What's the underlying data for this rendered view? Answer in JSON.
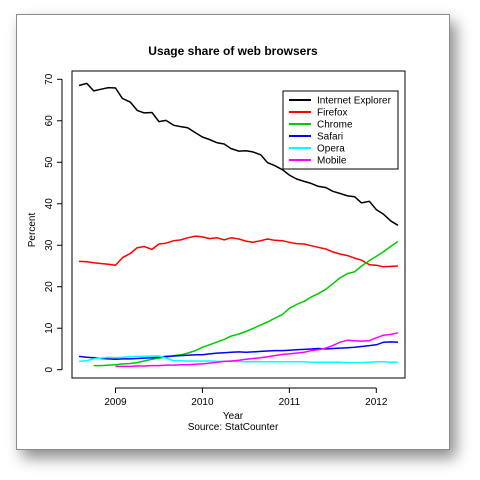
{
  "chart_data": {
    "type": "line",
    "title": "Usage share of web browsers",
    "xlabel": "Year",
    "ylabel": "Percent",
    "source": "Source: StatCounter",
    "xlim": [
      2008.5,
      2012.33
    ],
    "ylim": [
      -2,
      72
    ],
    "xticks": [
      2009,
      2010,
      2011,
      2012
    ],
    "yticks": [
      0,
      10,
      20,
      30,
      40,
      50,
      60,
      70
    ],
    "grid": false,
    "legend_position": "top-right",
    "series": [
      {
        "name": "Internet Explorer",
        "color": "#000000",
        "points": [
          [
            2008.58,
            68.5
          ],
          [
            2008.67,
            69.0
          ],
          [
            2008.75,
            67.2
          ],
          [
            2008.83,
            67.6
          ],
          [
            2008.92,
            68.0
          ],
          [
            2009.0,
            67.9
          ],
          [
            2009.08,
            65.4
          ],
          [
            2009.17,
            64.5
          ],
          [
            2009.25,
            62.5
          ],
          [
            2009.33,
            61.9
          ],
          [
            2009.42,
            62.0
          ],
          [
            2009.5,
            59.8
          ],
          [
            2009.58,
            60.1
          ],
          [
            2009.67,
            58.9
          ],
          [
            2009.75,
            58.6
          ],
          [
            2009.83,
            58.3
          ],
          [
            2009.92,
            57.1
          ],
          [
            2010.0,
            56.1
          ],
          [
            2010.08,
            55.5
          ],
          [
            2010.17,
            54.7
          ],
          [
            2010.25,
            54.4
          ],
          [
            2010.33,
            53.3
          ],
          [
            2010.42,
            52.7
          ],
          [
            2010.5,
            52.8
          ],
          [
            2010.58,
            52.5
          ],
          [
            2010.67,
            51.8
          ],
          [
            2010.75,
            49.9
          ],
          [
            2010.83,
            49.2
          ],
          [
            2010.92,
            48.2
          ],
          [
            2011.0,
            46.9
          ],
          [
            2011.08,
            46.0
          ],
          [
            2011.17,
            45.4
          ],
          [
            2011.25,
            44.9
          ],
          [
            2011.33,
            44.2
          ],
          [
            2011.42,
            43.9
          ],
          [
            2011.5,
            43.0
          ],
          [
            2011.58,
            42.5
          ],
          [
            2011.67,
            41.9
          ],
          [
            2011.75,
            41.7
          ],
          [
            2011.83,
            40.2
          ],
          [
            2011.92,
            40.6
          ],
          [
            2012.0,
            38.6
          ],
          [
            2012.08,
            37.5
          ],
          [
            2012.17,
            35.8
          ],
          [
            2012.25,
            34.8
          ]
        ]
      },
      {
        "name": "Firefox",
        "color": "#ff0000",
        "points": [
          [
            2008.58,
            26.1
          ],
          [
            2008.67,
            26.0
          ],
          [
            2008.75,
            25.8
          ],
          [
            2008.83,
            25.6
          ],
          [
            2008.92,
            25.4
          ],
          [
            2009.0,
            25.2
          ],
          [
            2009.08,
            27.0
          ],
          [
            2009.17,
            28.0
          ],
          [
            2009.25,
            29.4
          ],
          [
            2009.33,
            29.7
          ],
          [
            2009.42,
            29.0
          ],
          [
            2009.5,
            30.3
          ],
          [
            2009.58,
            30.5
          ],
          [
            2009.67,
            31.1
          ],
          [
            2009.75,
            31.3
          ],
          [
            2009.83,
            31.8
          ],
          [
            2009.92,
            32.2
          ],
          [
            2010.0,
            32.0
          ],
          [
            2010.08,
            31.6
          ],
          [
            2010.17,
            31.8
          ],
          [
            2010.25,
            31.3
          ],
          [
            2010.33,
            31.8
          ],
          [
            2010.42,
            31.5
          ],
          [
            2010.5,
            31.0
          ],
          [
            2010.58,
            30.7
          ],
          [
            2010.67,
            31.1
          ],
          [
            2010.75,
            31.5
          ],
          [
            2010.83,
            31.2
          ],
          [
            2010.92,
            31.1
          ],
          [
            2011.0,
            30.7
          ],
          [
            2011.08,
            30.4
          ],
          [
            2011.17,
            30.3
          ],
          [
            2011.25,
            29.9
          ],
          [
            2011.33,
            29.5
          ],
          [
            2011.42,
            29.1
          ],
          [
            2011.5,
            28.4
          ],
          [
            2011.58,
            27.9
          ],
          [
            2011.67,
            27.5
          ],
          [
            2011.75,
            26.9
          ],
          [
            2011.83,
            26.4
          ],
          [
            2011.92,
            25.3
          ],
          [
            2012.0,
            25.2
          ],
          [
            2012.08,
            24.8
          ],
          [
            2012.17,
            24.9
          ],
          [
            2012.25,
            25.0
          ]
        ]
      },
      {
        "name": "Chrome",
        "color": "#00cc00",
        "points": [
          [
            2008.75,
            1.0
          ],
          [
            2008.83,
            1.0
          ],
          [
            2008.92,
            1.1
          ],
          [
            2009.0,
            1.2
          ],
          [
            2009.08,
            1.4
          ],
          [
            2009.17,
            1.5
          ],
          [
            2009.25,
            1.7
          ],
          [
            2009.33,
            2.1
          ],
          [
            2009.42,
            2.5
          ],
          [
            2009.5,
            2.8
          ],
          [
            2009.58,
            3.0
          ],
          [
            2009.67,
            3.4
          ],
          [
            2009.75,
            3.6
          ],
          [
            2009.83,
            4.0
          ],
          [
            2009.92,
            4.6
          ],
          [
            2010.0,
            5.4
          ],
          [
            2010.08,
            6.0
          ],
          [
            2010.17,
            6.7
          ],
          [
            2010.25,
            7.3
          ],
          [
            2010.33,
            8.1
          ],
          [
            2010.42,
            8.6
          ],
          [
            2010.5,
            9.2
          ],
          [
            2010.58,
            9.9
          ],
          [
            2010.67,
            10.8
          ],
          [
            2010.75,
            11.5
          ],
          [
            2010.83,
            12.4
          ],
          [
            2010.92,
            13.3
          ],
          [
            2011.0,
            14.8
          ],
          [
            2011.08,
            15.7
          ],
          [
            2011.17,
            16.5
          ],
          [
            2011.25,
            17.5
          ],
          [
            2011.33,
            18.3
          ],
          [
            2011.42,
            19.4
          ],
          [
            2011.5,
            20.7
          ],
          [
            2011.58,
            22.1
          ],
          [
            2011.67,
            23.2
          ],
          [
            2011.75,
            23.6
          ],
          [
            2011.83,
            25.0
          ],
          [
            2011.92,
            26.3
          ],
          [
            2012.0,
            27.3
          ],
          [
            2012.08,
            28.4
          ],
          [
            2012.17,
            29.8
          ],
          [
            2012.25,
            30.9
          ]
        ]
      },
      {
        "name": "Safari",
        "color": "#0000ff",
        "points": [
          [
            2008.58,
            3.2
          ],
          [
            2008.67,
            3.0
          ],
          [
            2008.75,
            2.9
          ],
          [
            2008.83,
            2.7
          ],
          [
            2008.92,
            2.6
          ],
          [
            2009.0,
            2.5
          ],
          [
            2009.08,
            2.6
          ],
          [
            2009.17,
            2.6
          ],
          [
            2009.25,
            2.7
          ],
          [
            2009.33,
            2.8
          ],
          [
            2009.42,
            2.9
          ],
          [
            2009.5,
            3.0
          ],
          [
            2009.58,
            3.2
          ],
          [
            2009.67,
            3.3
          ],
          [
            2009.75,
            3.4
          ],
          [
            2009.83,
            3.5
          ],
          [
            2009.92,
            3.6
          ],
          [
            2010.0,
            3.6
          ],
          [
            2010.08,
            3.8
          ],
          [
            2010.17,
            4.0
          ],
          [
            2010.25,
            4.1
          ],
          [
            2010.33,
            4.2
          ],
          [
            2010.42,
            4.3
          ],
          [
            2010.5,
            4.2
          ],
          [
            2010.58,
            4.3
          ],
          [
            2010.67,
            4.4
          ],
          [
            2010.75,
            4.5
          ],
          [
            2010.83,
            4.6
          ],
          [
            2010.92,
            4.6
          ],
          [
            2011.0,
            4.7
          ],
          [
            2011.08,
            4.8
          ],
          [
            2011.17,
            4.9
          ],
          [
            2011.25,
            5.0
          ],
          [
            2011.33,
            5.1
          ],
          [
            2011.42,
            5.0
          ],
          [
            2011.5,
            5.1
          ],
          [
            2011.58,
            5.2
          ],
          [
            2011.67,
            5.3
          ],
          [
            2011.75,
            5.4
          ],
          [
            2011.83,
            5.6
          ],
          [
            2011.92,
            5.8
          ],
          [
            2012.0,
            6.0
          ],
          [
            2012.08,
            6.6
          ],
          [
            2012.17,
            6.7
          ],
          [
            2012.25,
            6.6
          ]
        ]
      },
      {
        "name": "Opera",
        "color": "#00ffff",
        "points": [
          [
            2008.58,
            2.0
          ],
          [
            2008.67,
            2.2
          ],
          [
            2008.75,
            2.6
          ],
          [
            2008.83,
            2.8
          ],
          [
            2008.92,
            3.0
          ],
          [
            2009.0,
            2.9
          ],
          [
            2009.08,
            3.0
          ],
          [
            2009.17,
            3.1
          ],
          [
            2009.25,
            3.2
          ],
          [
            2009.33,
            3.2
          ],
          [
            2009.42,
            3.3
          ],
          [
            2009.5,
            3.3
          ],
          [
            2009.58,
            2.8
          ],
          [
            2009.67,
            2.2
          ],
          [
            2009.75,
            2.2
          ],
          [
            2009.83,
            2.1
          ],
          [
            2009.92,
            2.1
          ],
          [
            2010.0,
            2.1
          ],
          [
            2010.08,
            2.1
          ],
          [
            2010.17,
            2.0
          ],
          [
            2010.25,
            2.0
          ],
          [
            2010.33,
            2.0
          ],
          [
            2010.42,
            2.0
          ],
          [
            2010.5,
            1.9
          ],
          [
            2010.58,
            1.9
          ],
          [
            2010.67,
            1.9
          ],
          [
            2010.75,
            1.9
          ],
          [
            2010.83,
            1.9
          ],
          [
            2010.92,
            1.9
          ],
          [
            2011.0,
            1.9
          ],
          [
            2011.08,
            1.9
          ],
          [
            2011.17,
            1.9
          ],
          [
            2011.25,
            1.8
          ],
          [
            2011.33,
            1.8
          ],
          [
            2011.42,
            1.8
          ],
          [
            2011.5,
            1.8
          ],
          [
            2011.58,
            1.8
          ],
          [
            2011.67,
            1.7
          ],
          [
            2011.75,
            1.7
          ],
          [
            2011.83,
            1.7
          ],
          [
            2011.92,
            1.8
          ],
          [
            2012.0,
            1.9
          ],
          [
            2012.08,
            1.9
          ],
          [
            2012.17,
            1.8
          ],
          [
            2012.25,
            1.8
          ]
        ]
      },
      {
        "name": "Mobile",
        "color": "#ff00ff",
        "points": [
          [
            2009.0,
            0.8
          ],
          [
            2009.08,
            0.8
          ],
          [
            2009.17,
            0.8
          ],
          [
            2009.25,
            0.9
          ],
          [
            2009.33,
            0.9
          ],
          [
            2009.42,
            1.0
          ],
          [
            2009.5,
            1.0
          ],
          [
            2009.58,
            1.1
          ],
          [
            2009.67,
            1.1
          ],
          [
            2009.75,
            1.2
          ],
          [
            2009.83,
            1.2
          ],
          [
            2009.92,
            1.3
          ],
          [
            2010.0,
            1.4
          ],
          [
            2010.08,
            1.6
          ],
          [
            2010.17,
            1.8
          ],
          [
            2010.25,
            2.0
          ],
          [
            2010.33,
            2.1
          ],
          [
            2010.42,
            2.3
          ],
          [
            2010.5,
            2.5
          ],
          [
            2010.58,
            2.7
          ],
          [
            2010.67,
            2.9
          ],
          [
            2010.75,
            3.1
          ],
          [
            2010.83,
            3.4
          ],
          [
            2010.92,
            3.7
          ],
          [
            2011.0,
            3.8
          ],
          [
            2011.08,
            4.0
          ],
          [
            2011.17,
            4.2
          ],
          [
            2011.25,
            4.6
          ],
          [
            2011.33,
            4.8
          ],
          [
            2011.42,
            5.2
          ],
          [
            2011.5,
            5.8
          ],
          [
            2011.58,
            6.6
          ],
          [
            2011.67,
            7.1
          ],
          [
            2011.75,
            7.0
          ],
          [
            2011.83,
            6.9
          ],
          [
            2011.92,
            7.0
          ],
          [
            2012.0,
            7.7
          ],
          [
            2012.08,
            8.3
          ],
          [
            2012.17,
            8.5
          ],
          [
            2012.25,
            8.9
          ]
        ]
      }
    ]
  }
}
